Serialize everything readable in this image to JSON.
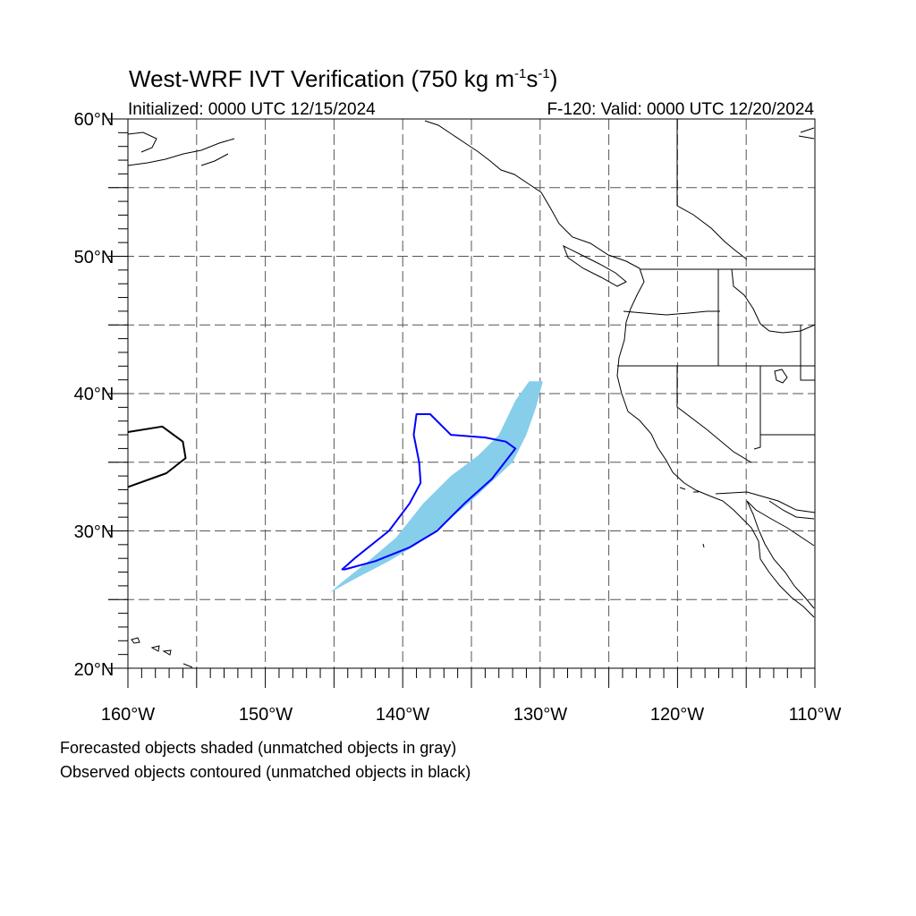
{
  "title": {
    "main": "West-WRF IVT Verification (750 kg m",
    "unit_exp1": "-1",
    "unit_s": "s",
    "unit_exp2": "-1",
    "unit_close": ")",
    "initialized": "Initialized: 0000 UTC 12/15/2024",
    "valid": "F-120: Valid: 0000 UTC 12/20/2024"
  },
  "axes": {
    "y_labels": [
      "60°N",
      "50°N",
      "40°N",
      "30°N",
      "20°N"
    ],
    "x_labels": [
      "160°W",
      "150°W",
      "140°W",
      "130°W",
      "120°W",
      "110°W"
    ],
    "lon_range": [
      -160,
      -110
    ],
    "lat_range": [
      20,
      60
    ]
  },
  "legend": {
    "line1": "Forecasted objects shaded (unmatched objects in gray)",
    "line2": "Observed objects contoured (unmatched objects in black)"
  },
  "colors": {
    "forecast_fill": "#87ceeb",
    "observed_matched": "#0000ff",
    "observed_unmatched": "#000000"
  },
  "chart_data": {
    "type": "map",
    "forecast_objects": [
      {
        "matched": true,
        "outline_lonlat": [
          [
            -145.3,
            25.5
          ],
          [
            -143.5,
            26.5
          ],
          [
            -141,
            27.8
          ],
          [
            -139,
            29
          ],
          [
            -137,
            30.5
          ],
          [
            -135,
            32.2
          ],
          [
            -133.5,
            33.6
          ],
          [
            -132,
            35
          ],
          [
            -131,
            37
          ],
          [
            -130.3,
            39
          ],
          [
            -129.8,
            40.9
          ],
          [
            -130.8,
            40.9
          ],
          [
            -131.8,
            39.5
          ],
          [
            -133,
            37
          ],
          [
            -134.5,
            35.5
          ],
          [
            -136.5,
            34
          ],
          [
            -138.5,
            32
          ],
          [
            -140.5,
            29.5
          ],
          [
            -142.5,
            27.8
          ],
          [
            -144.5,
            26.2
          ]
        ]
      }
    ],
    "observed_objects": [
      {
        "matched": true,
        "outline_lonlat": [
          [
            -144.2,
            27.2
          ],
          [
            -142,
            27.8
          ],
          [
            -139.5,
            28.8
          ],
          [
            -137.5,
            30
          ],
          [
            -135.5,
            32
          ],
          [
            -133.5,
            33.8
          ],
          [
            -131.8,
            36
          ],
          [
            -132.5,
            36.5
          ],
          [
            -134,
            36.8
          ],
          [
            -136.5,
            37
          ],
          [
            -138,
            38.5
          ],
          [
            -139,
            38.5
          ],
          [
            -139.2,
            37
          ],
          [
            -138.8,
            35
          ],
          [
            -138.7,
            33.5
          ],
          [
            -139.5,
            32
          ],
          [
            -141,
            30
          ],
          [
            -143.5,
            28
          ],
          [
            -144.4,
            27.2
          ]
        ]
      },
      {
        "matched": false,
        "outline_lonlat": [
          [
            -160,
            37.2
          ],
          [
            -157.5,
            37.6
          ],
          [
            -156,
            36.5
          ],
          [
            -155.8,
            35.3
          ],
          [
            -157.2,
            34.2
          ],
          [
            -160,
            33.2
          ]
        ]
      }
    ]
  }
}
